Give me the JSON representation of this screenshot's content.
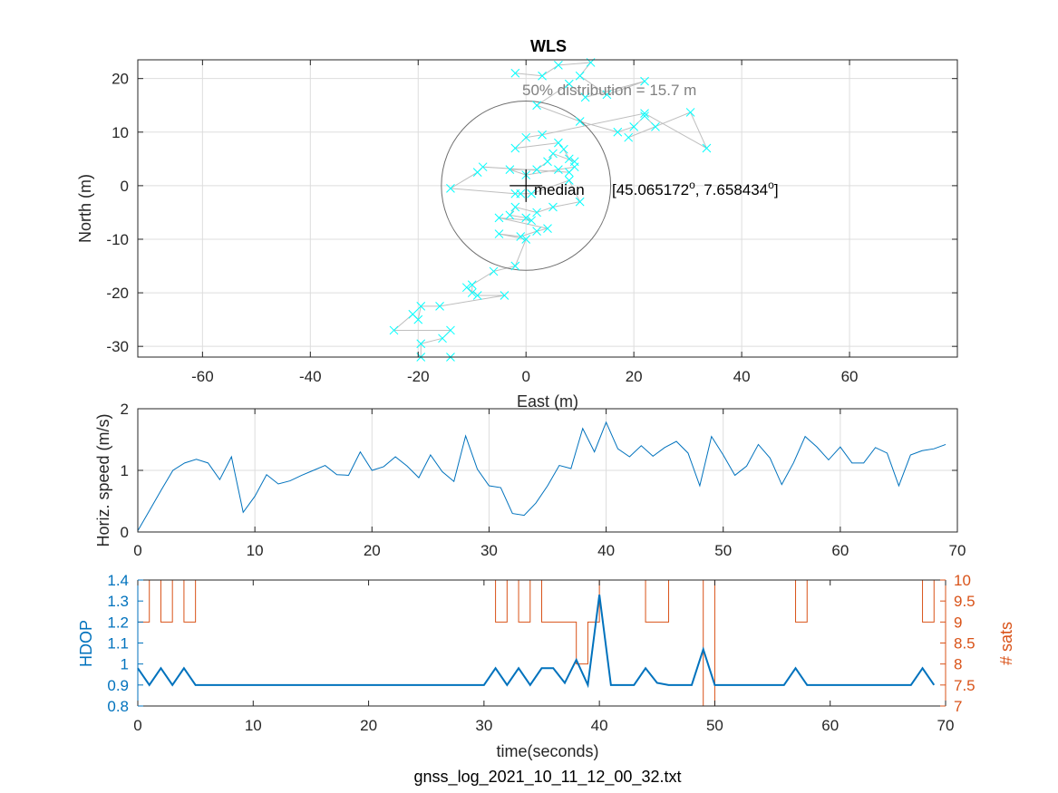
{
  "figure_caption": "gnss_log_2021_10_11_12_00_32.txt",
  "colors": {
    "points": "#00FFFF",
    "track": "#BEBEBE",
    "circle": "#6E6E6E",
    "speed": "#0072BD",
    "hdop": "#0072BD",
    "sats": "#D95319",
    "grid": "#DDDDDD",
    "axis": "#262626"
  },
  "chart_data": [
    {
      "type": "scatter",
      "title": "WLS",
      "xlabel": "East (m)",
      "ylabel": "North (m)",
      "xlim": [
        -72,
        80
      ],
      "ylim": [
        -32,
        23.5
      ],
      "xticks": [
        -60,
        -40,
        -20,
        0,
        20,
        40,
        60
      ],
      "yticks": [
        -30,
        -20,
        -10,
        0,
        10,
        20
      ],
      "grid": true,
      "distribution_label": "50% distribution = 15.7 m",
      "median_label": "median",
      "latlon_label": "[45.065172",
      "latlon_label_2": "o",
      "latlon_label_3": ", 7.658434",
      "latlon_label_4": "o",
      "latlon_label_5": "]",
      "circle_radius": 15.7,
      "median": [
        0,
        0
      ],
      "points": [
        [
          -2,
          21
        ],
        [
          3,
          20.5
        ],
        [
          6,
          22.5
        ],
        [
          12,
          23
        ],
        [
          10,
          20.5
        ],
        [
          15,
          17
        ],
        [
          22,
          19.5
        ],
        [
          11,
          16.5
        ],
        [
          8,
          19
        ],
        [
          2,
          15
        ],
        [
          10,
          12
        ],
        [
          17,
          10
        ],
        [
          20,
          11
        ],
        [
          22,
          13
        ],
        [
          24,
          11
        ],
        [
          19,
          9
        ],
        [
          30.5,
          13.7
        ],
        [
          33.5,
          7
        ],
        [
          22,
          13.5
        ],
        [
          3,
          9.5
        ],
        [
          0,
          9
        ],
        [
          -2,
          7
        ],
        [
          6,
          8
        ],
        [
          7,
          6.8
        ],
        [
          8,
          5
        ],
        [
          9,
          4.5
        ],
        [
          5,
          6
        ],
        [
          4,
          4.5
        ],
        [
          2,
          3
        ],
        [
          -3,
          3
        ],
        [
          0,
          2
        ],
        [
          6,
          3
        ],
        [
          9,
          3.5
        ],
        [
          8,
          2.5
        ],
        [
          -8,
          3.5
        ],
        [
          -9,
          2.5
        ],
        [
          -14,
          -0.5
        ],
        [
          -2,
          -1.5
        ],
        [
          -1,
          -1.5
        ],
        [
          1,
          -1.5
        ],
        [
          8,
          1
        ],
        [
          10,
          -3
        ],
        [
          5,
          -4
        ],
        [
          2,
          -5
        ],
        [
          -2,
          -4
        ],
        [
          -3,
          -5.5
        ],
        [
          0,
          -6
        ],
        [
          1,
          -6.5
        ],
        [
          -5,
          -6
        ],
        [
          4,
          -8
        ],
        [
          2,
          -8.5
        ],
        [
          -1,
          -9.5
        ],
        [
          -5,
          -9
        ],
        [
          0,
          -10
        ],
        [
          -2,
          -15
        ],
        [
          -6,
          -16
        ],
        [
          -10,
          -18.5
        ],
        [
          -10,
          -20
        ],
        [
          -11,
          -19
        ],
        [
          -9,
          -20.5
        ],
        [
          -4,
          -20.5
        ],
        [
          -16,
          -22.5
        ],
        [
          -19.5,
          -22.5
        ],
        [
          -20,
          -25
        ],
        [
          -21,
          -24
        ],
        [
          -24.5,
          -27
        ],
        [
          -14,
          -27
        ],
        [
          -15.5,
          -28.5
        ],
        [
          -19.5,
          -29.5
        ],
        [
          -19.5,
          -32
        ],
        [
          -14,
          -32
        ]
      ]
    },
    {
      "type": "line",
      "xlabel": "",
      "ylabel": "Horiz. speed (m/s)",
      "xlim": [
        0,
        70
      ],
      "ylim": [
        0,
        2
      ],
      "xticks": [
        0,
        10,
        20,
        30,
        40,
        50,
        60,
        70
      ],
      "yticks": [
        0,
        1,
        2
      ],
      "grid": true,
      "x": [
        0,
        1,
        2,
        3,
        4,
        5,
        6,
        7,
        8,
        9,
        10,
        11,
        12,
        13,
        14,
        15,
        16,
        17,
        18,
        19,
        20,
        21,
        22,
        23,
        24,
        25,
        26,
        27,
        28,
        29,
        30,
        31,
        32,
        33,
        34,
        35,
        36,
        37,
        38,
        39,
        40,
        41,
        42,
        43,
        44,
        45,
        46,
        47,
        48,
        49,
        50,
        51,
        52,
        53,
        54,
        55,
        56,
        57,
        58,
        59,
        60,
        61,
        62,
        63,
        64,
        65,
        66,
        67,
        68,
        69
      ],
      "values": [
        0.02,
        0.35,
        0.68,
        1.0,
        1.12,
        1.18,
        1.12,
        0.85,
        1.22,
        0.32,
        0.58,
        0.93,
        0.78,
        0.83,
        0.92,
        1.0,
        1.08,
        0.93,
        0.92,
        1.3,
        1.0,
        1.06,
        1.22,
        1.07,
        0.88,
        1.25,
        0.98,
        0.82,
        1.56,
        1.02,
        0.75,
        0.72,
        0.3,
        0.27,
        0.47,
        0.75,
        1.08,
        1.03,
        1.68,
        1.3,
        1.78,
        1.35,
        1.22,
        1.4,
        1.23,
        1.37,
        1.47,
        1.28,
        0.75,
        1.55,
        1.25,
        0.92,
        1.07,
        1.42,
        1.2,
        0.77,
        1.12,
        1.55,
        1.38,
        1.17,
        1.38,
        1.12,
        1.12,
        1.37,
        1.28,
        0.75,
        1.25,
        1.32,
        1.35,
        1.42
      ]
    },
    {
      "type": "line",
      "xlabel": "time(seconds)",
      "ylabel": "HDOP",
      "ylabel_right": "# sats",
      "xlim": [
        0,
        70
      ],
      "ylim": [
        0.8,
        1.4
      ],
      "ylim_right": [
        7,
        10
      ],
      "xticks": [
        0,
        10,
        20,
        30,
        40,
        50,
        60,
        70
      ],
      "yticks": [
        0.8,
        0.9,
        1.0,
        1.1,
        1.2,
        1.3,
        1.4
      ],
      "ytick_labels": [
        "0.8",
        "0.9",
        "1",
        "1.1",
        "1.2",
        "1.3",
        "1.4"
      ],
      "yticks_right": [
        7,
        7.5,
        8,
        8.5,
        9,
        9.5,
        10
      ],
      "ytick_labels_right": [
        "7",
        "7.5",
        "8",
        "8.5",
        "9",
        "9.5",
        "10"
      ],
      "grid": false,
      "series": [
        {
          "name": "HDOP",
          "step": false,
          "x": [
            0,
            1,
            2,
            3,
            4,
            5,
            6,
            7,
            8,
            9,
            10,
            11,
            12,
            13,
            14,
            15,
            16,
            17,
            18,
            19,
            20,
            21,
            22,
            23,
            24,
            25,
            26,
            27,
            28,
            29,
            30,
            31,
            32,
            33,
            34,
            35,
            36,
            37,
            38,
            39,
            40,
            41,
            42,
            43,
            44,
            45,
            46,
            47,
            48,
            49,
            50,
            51,
            52,
            53,
            54,
            55,
            56,
            57,
            58,
            59,
            60,
            61,
            62,
            63,
            64,
            65,
            66,
            67,
            68,
            69
          ],
          "values": [
            0.98,
            0.9,
            0.98,
            0.9,
            0.98,
            0.9,
            0.9,
            0.9,
            0.9,
            0.9,
            0.9,
            0.9,
            0.9,
            0.9,
            0.9,
            0.9,
            0.9,
            0.9,
            0.9,
            0.9,
            0.9,
            0.9,
            0.9,
            0.9,
            0.9,
            0.9,
            0.9,
            0.9,
            0.9,
            0.9,
            0.9,
            0.98,
            0.9,
            0.98,
            0.9,
            0.98,
            0.98,
            0.91,
            1.02,
            0.9,
            1.33,
            0.9,
            0.9,
            0.9,
            0.98,
            0.91,
            0.9,
            0.9,
            0.9,
            1.07,
            0.9,
            0.9,
            0.9,
            0.9,
            0.9,
            0.9,
            0.9,
            0.98,
            0.9,
            0.9,
            0.9,
            0.9,
            0.9,
            0.9,
            0.9,
            0.9,
            0.9,
            0.9,
            0.98,
            0.9
          ]
        },
        {
          "name": "# sats",
          "axis": "right",
          "step": true,
          "x": [
            0,
            1,
            2,
            3,
            4,
            5,
            6,
            7,
            8,
            9,
            10,
            11,
            12,
            13,
            14,
            15,
            16,
            17,
            18,
            19,
            20,
            21,
            22,
            23,
            24,
            25,
            26,
            27,
            28,
            29,
            30,
            31,
            32,
            33,
            34,
            35,
            36,
            37,
            38,
            39,
            40,
            41,
            42,
            43,
            44,
            45,
            46,
            47,
            48,
            49,
            50,
            51,
            52,
            53,
            54,
            55,
            56,
            57,
            58,
            59,
            60,
            61,
            62,
            63,
            64,
            65,
            66,
            67,
            68,
            69
          ],
          "values": [
            9,
            10,
            9,
            10,
            9,
            10,
            10,
            10,
            10,
            10,
            10,
            10,
            10,
            10,
            10,
            10,
            10,
            10,
            10,
            10,
            10,
            10,
            10,
            10,
            10,
            10,
            10,
            10,
            10,
            10,
            10,
            9,
            10,
            9,
            10,
            9,
            9,
            9,
            8,
            9,
            10,
            10,
            10,
            10,
            9,
            9,
            10,
            10,
            10,
            7,
            10,
            10,
            10,
            10,
            10,
            10,
            10,
            9,
            10,
            10,
            10,
            10,
            10,
            10,
            10,
            10,
            10,
            10,
            9,
            10
          ]
        }
      ]
    }
  ]
}
